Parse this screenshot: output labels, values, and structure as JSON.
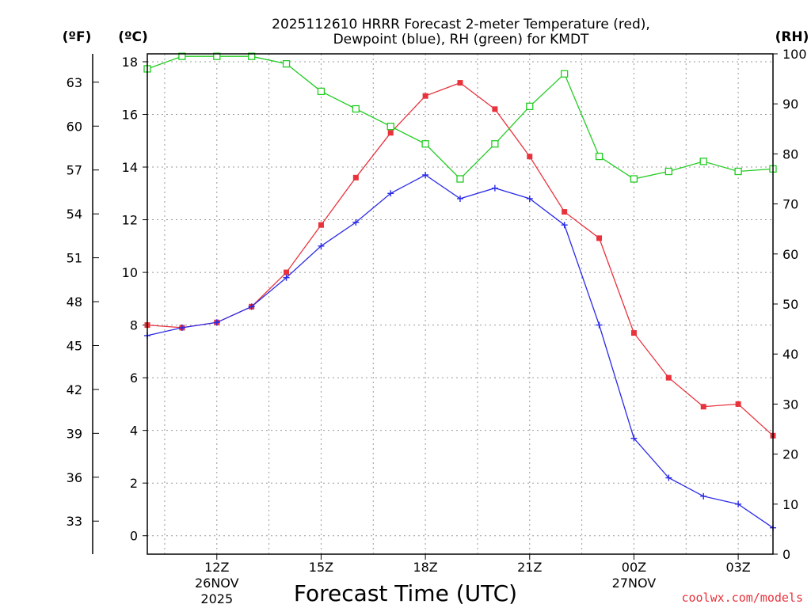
{
  "title_line1": "2025112610 HRRR Forecast 2-meter Temperature (red),",
  "title_line2": "Dewpoint (blue), RH (green) for KMDT",
  "unit_f": "(ºF)",
  "unit_c": "(ºC)",
  "unit_rh": "(RH)",
  "credit": "coolwx.com/models",
  "colors": {
    "temperature": "#e8323c",
    "dewpoint": "#2a2ae8",
    "rh": "#22cc22",
    "credit": "#e8323c"
  },
  "chart_data": {
    "type": "line",
    "title": "2025112610 HRRR Forecast 2-meter Temperature (red), Dewpoint (blue), RH (green) for KMDT",
    "xlabel": "Forecast Time (UTC)",
    "x_hours": [
      10,
      11,
      12,
      13,
      14,
      15,
      16,
      17,
      18,
      19,
      20,
      21,
      22,
      23,
      24,
      25,
      26,
      27,
      28
    ],
    "x_range": [
      10,
      28
    ],
    "x_ticks": [
      {
        "hour": 12,
        "label": "12Z",
        "sub": [
          "26NOV",
          "2025"
        ]
      },
      {
        "hour": 15,
        "label": "15Z",
        "sub": []
      },
      {
        "hour": 18,
        "label": "18Z",
        "sub": []
      },
      {
        "hour": 21,
        "label": "21Z",
        "sub": []
      },
      {
        "hour": 24,
        "label": "00Z",
        "sub": [
          "27NOV"
        ]
      },
      {
        "hour": 27,
        "label": "03Z",
        "sub": []
      }
    ],
    "celsius_axis": {
      "label": "(ºC)",
      "range": [
        -0.7,
        18.3
      ],
      "ticks": [
        0,
        2,
        4,
        6,
        8,
        10,
        12,
        14,
        16,
        18
      ]
    },
    "fahrenheit_axis": {
      "label": "(ºF)",
      "ticks": [
        33,
        36,
        39,
        42,
        45,
        48,
        51,
        54,
        57,
        60,
        63
      ]
    },
    "rh_axis": {
      "label": "(RH)",
      "range": [
        0,
        100
      ],
      "ticks": [
        0,
        10,
        20,
        30,
        40,
        50,
        60,
        70,
        80,
        90,
        100
      ]
    },
    "series": [
      {
        "name": "Temperature",
        "axis": "celsius",
        "color": "#e8323c",
        "marker": "filled-square",
        "values": [
          8.0,
          7.9,
          8.1,
          8.7,
          10.0,
          11.8,
          13.6,
          15.3,
          16.7,
          17.2,
          16.2,
          14.4,
          12.3,
          11.3,
          7.7,
          6.0,
          4.9,
          5.0,
          3.8
        ]
      },
      {
        "name": "Dewpoint",
        "axis": "celsius",
        "color": "#2a2ae8",
        "marker": "plus",
        "values": [
          7.6,
          7.9,
          8.1,
          8.7,
          9.8,
          11.0,
          11.9,
          13.0,
          13.7,
          12.8,
          13.2,
          12.8,
          11.8,
          8.0,
          3.7,
          2.2,
          1.5,
          1.2,
          0.3
        ]
      },
      {
        "name": "Relative Humidity",
        "axis": "rh",
        "color": "#22cc22",
        "marker": "open-square",
        "values": [
          97,
          99.5,
          99.5,
          99.5,
          98,
          92.5,
          89,
          85.5,
          82,
          75,
          82,
          89.5,
          96,
          79.5,
          75,
          76.5,
          78.5,
          76.5,
          77
        ]
      }
    ]
  }
}
